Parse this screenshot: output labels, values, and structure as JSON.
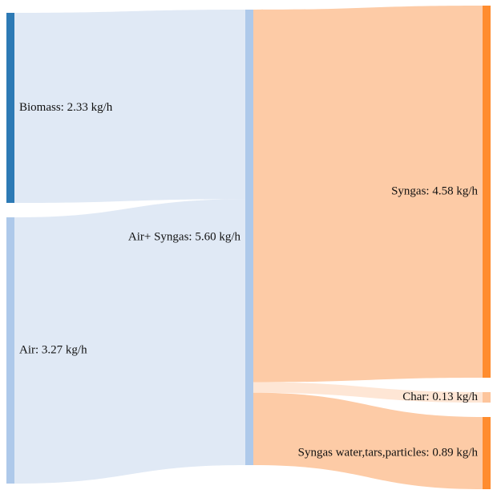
{
  "diagram": {
    "type": "sankey",
    "unit": "kg/h",
    "nodes": [
      {
        "id": "biomass",
        "label": "Biomass: 2.33 kg/h",
        "name": "Biomass",
        "value": 2.33,
        "color": "#2d7ab5"
      },
      {
        "id": "air",
        "label": "Air: 3.27 kg/h",
        "name": "Air",
        "value": 3.27,
        "color": "#aec9ea"
      },
      {
        "id": "air_syngas",
        "label": "Air+ Syngas: 5.60 kg/h",
        "name": "Air+ Syngas",
        "value": 5.6,
        "color": "#aec9ea"
      },
      {
        "id": "syngas",
        "label": "Syngas: 4.58 kg/h",
        "name": "Syngas",
        "value": 4.58,
        "color": "#ff8c2e"
      },
      {
        "id": "char",
        "label": "Char: 0.13 kg/h",
        "name": "Char",
        "value": 0.13,
        "color": "#fdc59c"
      },
      {
        "id": "syngas_water",
        "label": "Syngas water,tars,particles: 0.89 kg/h",
        "name": "Syngas water,tars,particles",
        "value": 0.89,
        "color": "#ff8c2e"
      }
    ],
    "links": [
      {
        "source": "biomass",
        "target": "air_syngas",
        "value": 2.33,
        "color": "#e0e9f5"
      },
      {
        "source": "air",
        "target": "air_syngas",
        "value": 3.27,
        "color": "#e0e9f5"
      },
      {
        "source": "air_syngas",
        "target": "syngas",
        "value": 4.58,
        "color": "#fdcba6"
      },
      {
        "source": "air_syngas",
        "target": "char",
        "value": 0.13,
        "color": "#fee6d5"
      },
      {
        "source": "air_syngas",
        "target": "syngas_water",
        "value": 0.89,
        "color": "#fdcba6"
      }
    ]
  }
}
